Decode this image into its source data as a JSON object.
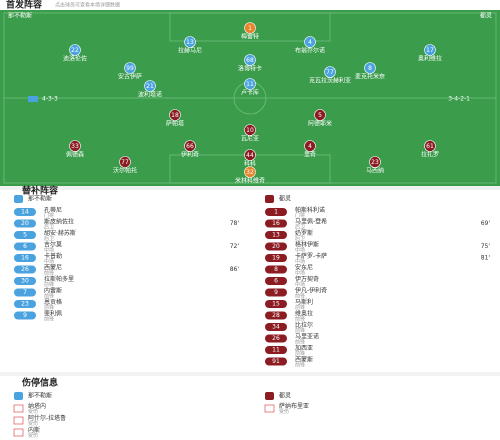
{
  "header": {
    "title": "首发阵容",
    "subtitle": "点击球员可查看本场详细数据"
  },
  "bench_title": "替补阵容",
  "injury_title": "伤停信息",
  "home": {
    "name": "那不勒斯",
    "formation": "4-3-3",
    "starters": [
      {
        "number": "1",
        "name": "梅雷特"
      },
      {
        "number": "22",
        "name": "迪洛伦佐"
      },
      {
        "number": "13",
        "name": "拉赫马尼"
      },
      {
        "number": "4",
        "name": "布翁乔尔诺"
      },
      {
        "number": "17",
        "name": "奥利维拉"
      },
      {
        "number": "99",
        "name": "安古伊萨"
      },
      {
        "number": "68",
        "name": "洛博特卡"
      },
      {
        "number": "8",
        "name": "麦克托米奈"
      },
      {
        "number": "21",
        "name": "波利塔诺"
      },
      {
        "number": "11",
        "name": "卢卡库"
      },
      {
        "number": "77",
        "name": "克瓦拉茨赫利亚"
      }
    ],
    "bench": [
      {
        "number": "14",
        "name": "孔蒂尼",
        "pos": "门将"
      },
      {
        "number": "20",
        "name": "斯皮纳佐拉",
        "pos": "后卫",
        "time": "78'"
      },
      {
        "number": "5",
        "name": "胡安·赫苏斯",
        "pos": "后卫"
      },
      {
        "number": "6",
        "name": "吉尔莫",
        "pos": "中场",
        "time": "72'"
      },
      {
        "number": "16",
        "name": "卡普勒",
        "pos": "中场"
      },
      {
        "number": "26",
        "name": "西蒙尼",
        "pos": "前锋",
        "time": "86'"
      },
      {
        "number": "30",
        "name": "拉斯帕多里",
        "pos": "前锋"
      },
      {
        "number": "7",
        "name": "内雷斯",
        "pos": "前锋"
      },
      {
        "number": "23",
        "name": "恩贡格",
        "pos": "前锋"
      },
      {
        "number": "9",
        "name": "斐利佩",
        "pos": "前锋"
      }
    ],
    "injuries": [
      {
        "name": "纳塔内",
        "reason": "受伤"
      },
      {
        "name": "阿什尔-拉塔鲁",
        "reason": "受伤"
      },
      {
        "name": "内斯",
        "reason": "受伤"
      }
    ]
  },
  "away": {
    "name": "都灵",
    "formation": "3-4-2-1",
    "starters": [
      {
        "number": "32",
        "name": "米林科维奇"
      },
      {
        "number": "77",
        "name": "沃尔帕托"
      },
      {
        "number": "44",
        "name": "科科"
      },
      {
        "number": "23",
        "name": "马西纳"
      },
      {
        "number": "33",
        "name": "佩德森"
      },
      {
        "number": "66",
        "name": "伊利奇"
      },
      {
        "number": "4",
        "name": "里奇"
      },
      {
        "number": "61",
        "name": "拉扎罗"
      },
      {
        "number": "18",
        "name": "萨帕塔"
      },
      {
        "number": "5",
        "name": "阿德耶米"
      },
      {
        "number": "10",
        "name": "瓦尼亚"
      }
    ],
    "bench": [
      {
        "number": "1",
        "name": "帕斯科利诺",
        "pos": "门将"
      },
      {
        "number": "16",
        "name": "马里佩-登希",
        "pos": "后卫",
        "time": "69'"
      },
      {
        "number": "13",
        "name": "奶罗斯",
        "pos": "后卫"
      },
      {
        "number": "20",
        "name": "格林伊斯",
        "pos": "中场",
        "time": "75'"
      },
      {
        "number": "19",
        "name": "卡萨罗-卡萨",
        "pos": "中场",
        "time": "81'"
      },
      {
        "number": "8",
        "name": "安东尼",
        "pos": "中场"
      },
      {
        "number": "6",
        "name": "伊万契奇",
        "pos": "中场"
      },
      {
        "number": "9",
        "name": "伊凡-伊利奇",
        "pos": "前锋"
      },
      {
        "number": "15",
        "name": "马斯利",
        "pos": "前锋"
      },
      {
        "number": "28",
        "name": "维奥拉",
        "pos": "前锋"
      },
      {
        "number": "34",
        "name": "比拉尔",
        "pos": "前锋"
      },
      {
        "number": "26",
        "name": "马里亚诺",
        "pos": "前锋"
      },
      {
        "number": "11",
        "name": "加西亚",
        "pos": "前锋"
      },
      {
        "number": "91",
        "name": "西蒙斯",
        "pos": "前锋"
      }
    ],
    "injuries": [
      {
        "name": "萨纳布里亚",
        "reason": "受伤"
      }
    ]
  }
}
